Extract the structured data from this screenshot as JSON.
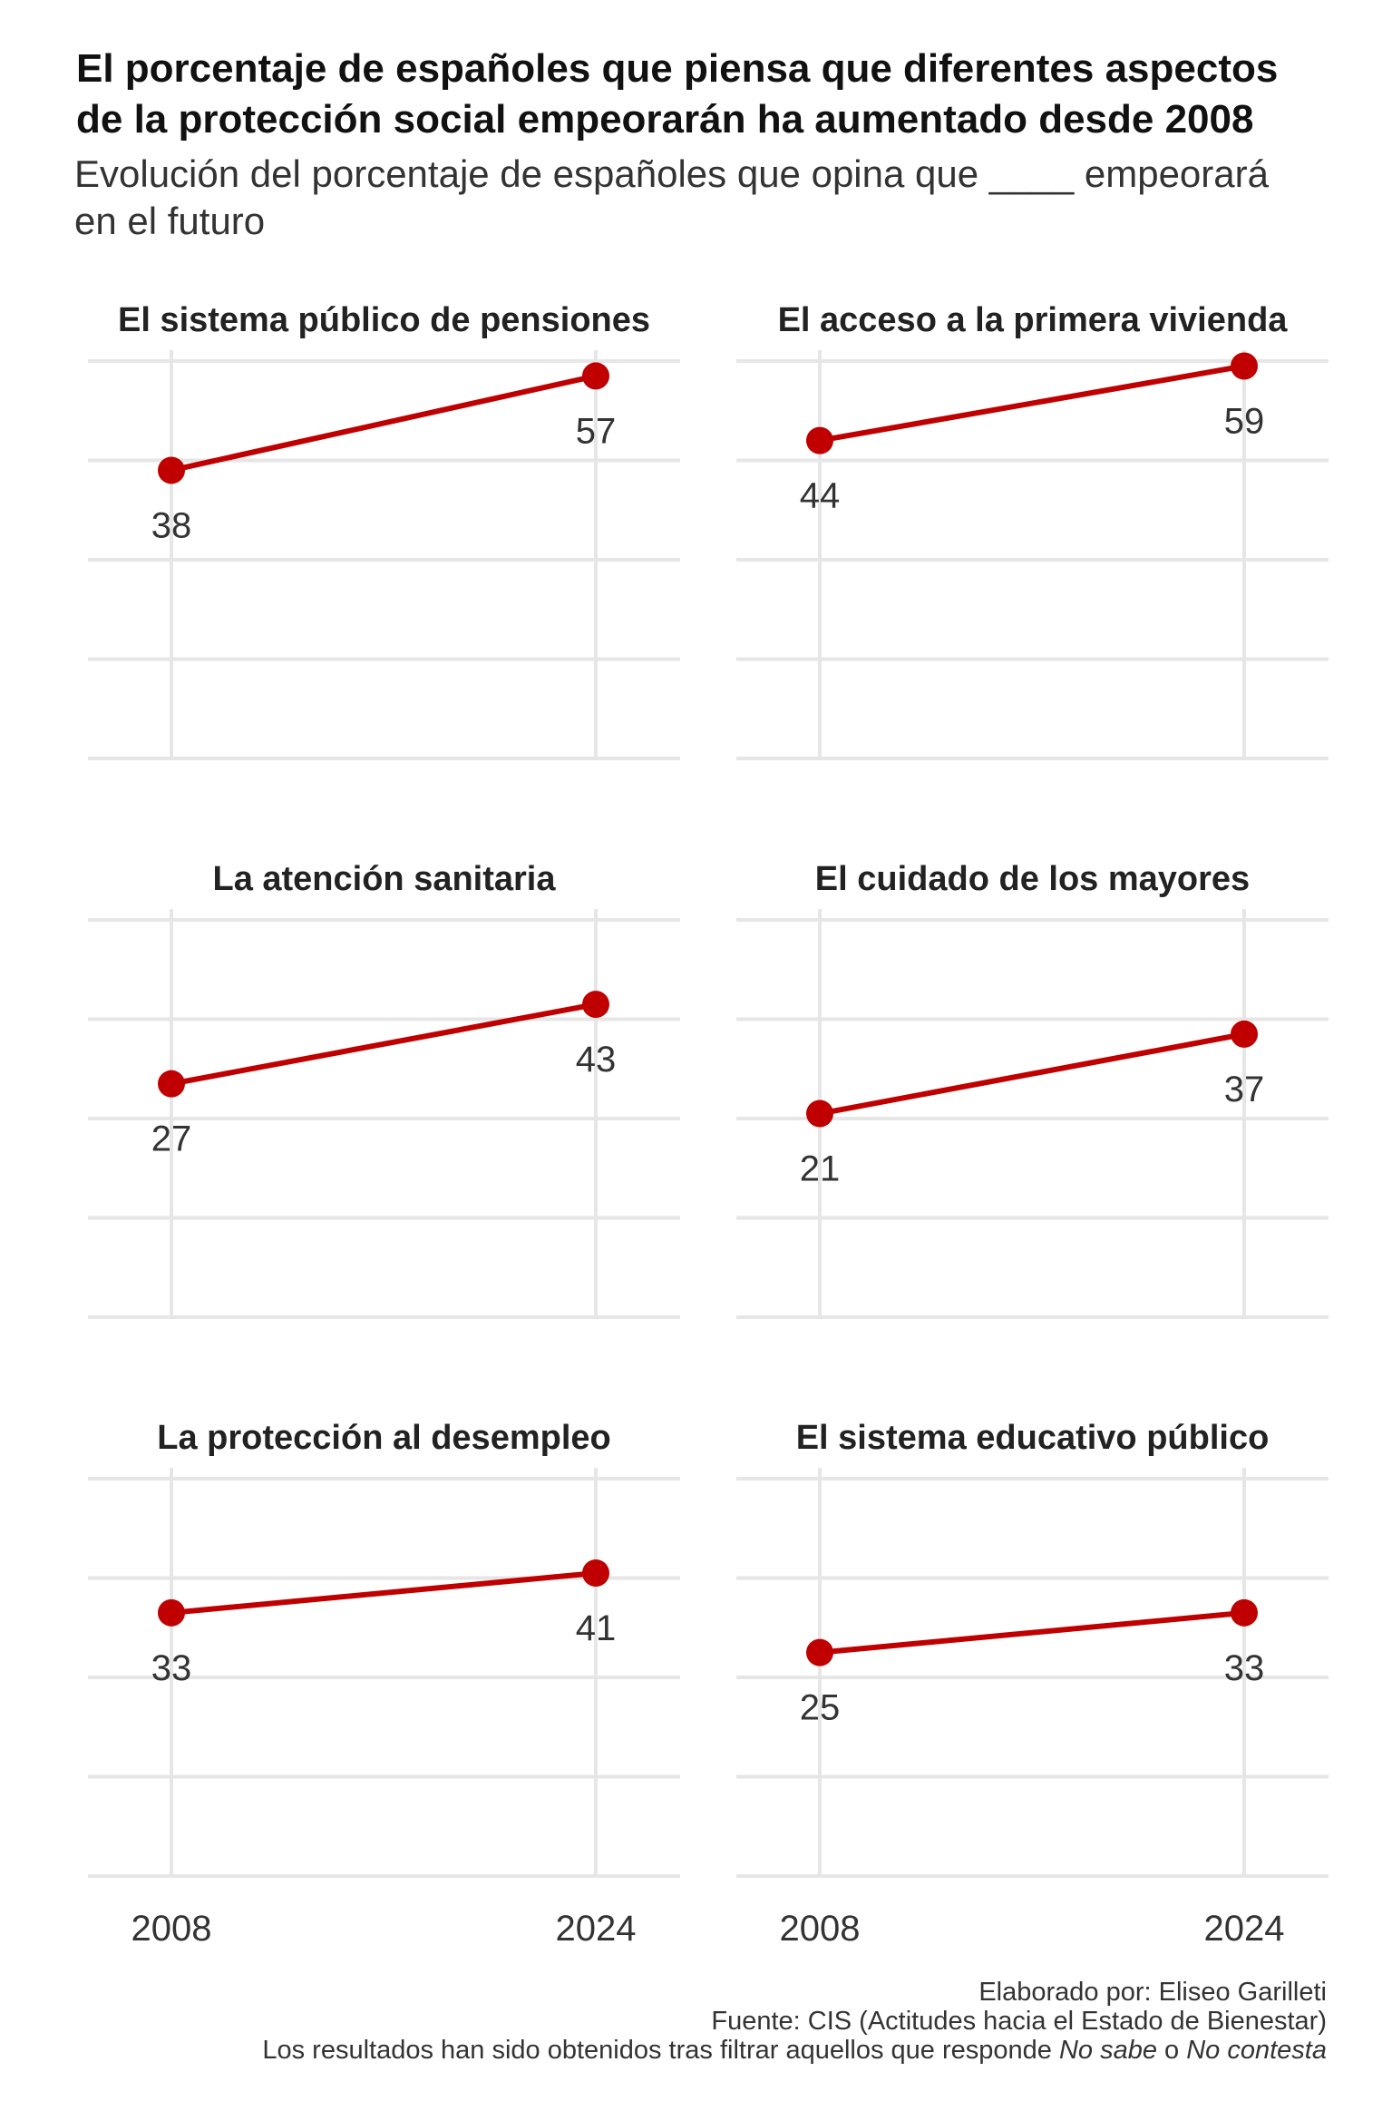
{
  "title": {
    "line1": "El porcentaje de españoles que piensa que diferentes aspectos",
    "line2": "de la protección social empeorarán ha aumentado desde 2008"
  },
  "subtitle": {
    "line1": "Evolución del porcentaje de españoles que opina que ____ empeorará",
    "line2": "en el futuro"
  },
  "caption": {
    "author": "Elaborado por: Eliseo Garilleti",
    "source": "Fuente: CIS (Actitudes hacia el Estado de Bienestar)",
    "note_prefix": "Los resultados han sido obtenidos tras filtrar aquellos que responde ",
    "note_em1": "No sabe",
    "note_mid": " o ",
    "note_em2": "No contesta"
  },
  "colors": {
    "line": "#c00000",
    "grid": "#e6e6e6",
    "text": "#333333"
  },
  "chart_data": [
    {
      "type": "line",
      "title": "El sistema público de pensiones",
      "x": [
        "2008",
        "2024"
      ],
      "values": [
        38,
        57
      ],
      "ylim": [
        -20,
        60
      ]
    },
    {
      "type": "line",
      "title": "El acceso a la primera vivienda",
      "x": [
        "2008",
        "2024"
      ],
      "values": [
        44,
        59
      ],
      "ylim": [
        -20,
        60
      ]
    },
    {
      "type": "line",
      "title": "La atención sanitaria",
      "x": [
        "2008",
        "2024"
      ],
      "values": [
        27,
        43
      ],
      "ylim": [
        -20,
        60
      ]
    },
    {
      "type": "line",
      "title": "El cuidado de los mayores",
      "x": [
        "2008",
        "2024"
      ],
      "values": [
        21,
        37
      ],
      "ylim": [
        -20,
        60
      ]
    },
    {
      "type": "line",
      "title": "La protección al desempleo",
      "x": [
        "2008",
        "2024"
      ],
      "values": [
        33,
        41
      ],
      "ylim": [
        -20,
        60
      ]
    },
    {
      "type": "line",
      "title": "El sistema educativo público",
      "x": [
        "2008",
        "2024"
      ],
      "values": [
        25,
        33
      ],
      "ylim": [
        -20,
        60
      ]
    }
  ]
}
